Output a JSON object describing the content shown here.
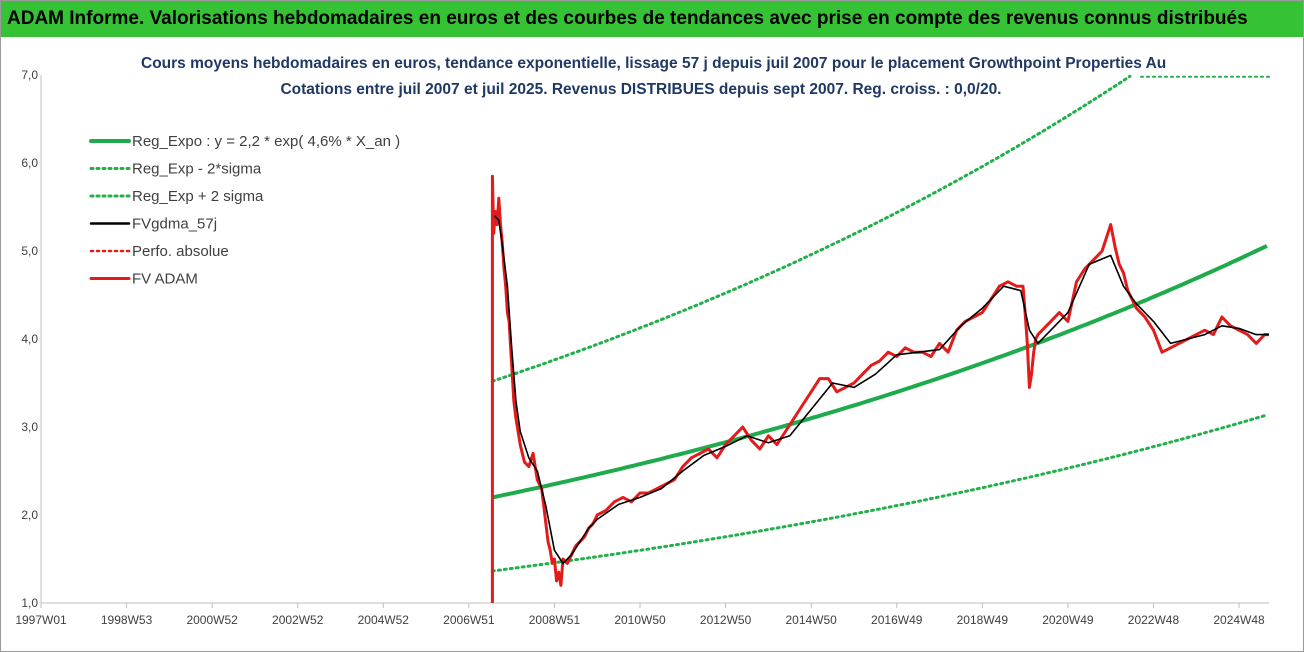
{
  "header": {
    "banner": "ADAM Informe. Valorisations hebdomadaires en euros et des courbes de tendances avec prise en compte des revenus connus distribués"
  },
  "colors": {
    "banner_bg": "#35c335",
    "reg_expo": "#1faa4b",
    "sigma": "#22b04b",
    "fvgdma": "#000000",
    "fvadam": "#e31b1b",
    "perfo": "#e31b1b",
    "title_text": "#1f3864"
  },
  "chart_data": {
    "type": "line",
    "title": "Cours moyens hebdomadaires en euros, tendance exponentielle, lissage 57 j depuis juil 2007 pour le placement Growthpoint Properties Au",
    "subtitle": "Cotations entre juil 2007 et juil 2025.  Revenus DISTRIBUES depuis sept 2007.  Reg. croiss. : 0,0/20.",
    "xlabel": "",
    "ylabel": "",
    "ylim": [
      1.0,
      7.0
    ],
    "xlim": [
      1997.0,
      2025.7
    ],
    "yticks": [
      "1,0",
      "2,0",
      "3,0",
      "4,0",
      "5,0",
      "6,0",
      "7,0"
    ],
    "xticks": [
      {
        "label": "1997W01",
        "x": 1997.0
      },
      {
        "label": "1998W53",
        "x": 1999.0
      },
      {
        "label": "2000W52",
        "x": 2001.0
      },
      {
        "label": "2002W52",
        "x": 2003.0
      },
      {
        "label": "2004W52",
        "x": 2005.0
      },
      {
        "label": "2006W51",
        "x": 2007.0
      },
      {
        "label": "2008W51",
        "x": 2009.0
      },
      {
        "label": "2010W50",
        "x": 2011.0
      },
      {
        "label": "2012W50",
        "x": 2013.0
      },
      {
        "label": "2014W50",
        "x": 2015.0
      },
      {
        "label": "2016W49",
        "x": 2017.0
      },
      {
        "label": "2018W49",
        "x": 2019.0
      },
      {
        "label": "2020W49",
        "x": 2021.0
      },
      {
        "label": "2022W48",
        "x": 2023.0
      },
      {
        "label": "2024W48",
        "x": 2025.0
      }
    ],
    "grid": false,
    "legend_position": "top-left",
    "regression": {
      "a": 2.2,
      "rate": 0.046,
      "x0": 2007.55,
      "x_end": 2025.7,
      "sigma_upper_factor": 1.6,
      "sigma_lower_factor": 0.62
    },
    "legend": [
      {
        "key": "reg_expo",
        "label": "Reg_Expo : y = 2,2 * exp( 4,6% *  X_an )",
        "style": "solid"
      },
      {
        "key": "sigma_lower",
        "label": "Reg_Exp - 2*sigma",
        "style": "dotted"
      },
      {
        "key": "sigma_upper",
        "label": "Reg_Exp + 2 sigma",
        "style": "dotted"
      },
      {
        "key": "fvgdma",
        "label": "FVgdma_57j",
        "style": "solid"
      },
      {
        "key": "perfo",
        "label": "Perfo. absolue",
        "style": "dotted"
      },
      {
        "key": "fvadam",
        "label": "FV ADAM",
        "style": "solid"
      }
    ],
    "series": [
      {
        "name": "FV ADAM",
        "x": [
          2007.55,
          2007.55,
          2007.58,
          2007.62,
          2007.66,
          2007.7,
          2007.74,
          2007.78,
          2007.82,
          2007.86,
          2007.9,
          2007.94,
          2008.0,
          2008.05,
          2008.1,
          2008.15,
          2008.2,
          2008.3,
          2008.4,
          2008.5,
          2008.6,
          2008.7,
          2008.75,
          2008.8,
          2008.85,
          2008.9,
          2008.95,
          2009.0,
          2009.05,
          2009.1,
          2009.15,
          2009.2,
          2009.3,
          2009.4,
          2009.5,
          2009.6,
          2009.7,
          2009.8,
          2009.9,
          2010.0,
          2010.2,
          2010.4,
          2010.6,
          2010.8,
          2011.0,
          2011.2,
          2011.4,
          2011.6,
          2011.8,
          2012.0,
          2012.2,
          2012.4,
          2012.6,
          2012.8,
          2013.0,
          2013.2,
          2013.4,
          2013.6,
          2013.8,
          2014.0,
          2014.2,
          2014.4,
          2014.6,
          2014.8,
          2015.0,
          2015.2,
          2015.4,
          2015.6,
          2015.8,
          2016.0,
          2016.2,
          2016.4,
          2016.6,
          2016.8,
          2017.0,
          2017.2,
          2017.4,
          2017.6,
          2017.8,
          2018.0,
          2018.2,
          2018.4,
          2018.6,
          2018.8,
          2019.0,
          2019.2,
          2019.4,
          2019.6,
          2019.8,
          2019.95,
          2020.0,
          2020.05,
          2020.1,
          2020.15,
          2020.2,
          2020.25,
          2020.3,
          2020.4,
          2020.6,
          2020.8,
          2021.0,
          2021.2,
          2021.4,
          2021.6,
          2021.8,
          2022.0,
          2022.1,
          2022.2,
          2022.3,
          2022.4,
          2022.5,
          2022.6,
          2022.8,
          2023.0,
          2023.2,
          2023.4,
          2023.6,
          2023.8,
          2024.0,
          2024.2,
          2024.4,
          2024.6,
          2024.8,
          2025.0,
          2025.2,
          2025.4,
          2025.6,
          2025.7
        ],
        "y": [
          1.0,
          5.85,
          5.2,
          5.45,
          5.3,
          5.6,
          5.3,
          5.1,
          4.8,
          4.6,
          4.3,
          4.2,
          3.7,
          3.3,
          3.1,
          2.95,
          2.8,
          2.6,
          2.55,
          2.7,
          2.4,
          2.3,
          2.1,
          1.9,
          1.7,
          1.6,
          1.45,
          1.5,
          1.25,
          1.35,
          1.2,
          1.5,
          1.45,
          1.55,
          1.65,
          1.7,
          1.75,
          1.85,
          1.9,
          2.0,
          2.05,
          2.15,
          2.2,
          2.15,
          2.25,
          2.25,
          2.3,
          2.35,
          2.4,
          2.55,
          2.65,
          2.7,
          2.75,
          2.65,
          2.8,
          2.9,
          3.0,
          2.85,
          2.75,
          2.9,
          2.8,
          2.95,
          3.1,
          3.25,
          3.4,
          3.55,
          3.55,
          3.4,
          3.45,
          3.5,
          3.6,
          3.7,
          3.75,
          3.85,
          3.8,
          3.9,
          3.85,
          3.85,
          3.8,
          3.95,
          3.85,
          4.1,
          4.2,
          4.25,
          4.3,
          4.45,
          4.6,
          4.65,
          4.6,
          4.6,
          4.3,
          3.95,
          3.45,
          3.6,
          3.85,
          4.0,
          4.05,
          4.1,
          4.2,
          4.3,
          4.2,
          4.65,
          4.8,
          4.9,
          5.0,
          5.3,
          5.05,
          4.85,
          4.75,
          4.55,
          4.45,
          4.35,
          4.25,
          4.1,
          3.85,
          3.9,
          3.95,
          4.0,
          4.05,
          4.1,
          4.05,
          4.25,
          4.15,
          4.1,
          4.05,
          3.95,
          4.05,
          4.05
        ]
      },
      {
        "name": "FVgdma_57j",
        "x": [
          2007.6,
          2007.7,
          2007.8,
          2007.9,
          2008.0,
          2008.1,
          2008.2,
          2008.4,
          2008.6,
          2008.8,
          2009.0,
          2009.2,
          2009.4,
          2009.6,
          2009.8,
          2010.0,
          2010.5,
          2011.0,
          2011.5,
          2012.0,
          2012.5,
          2013.0,
          2013.5,
          2014.0,
          2014.5,
          2015.0,
          2015.5,
          2016.0,
          2016.5,
          2017.0,
          2017.5,
          2018.0,
          2018.5,
          2019.0,
          2019.5,
          2019.9,
          2020.1,
          2020.3,
          2020.6,
          2021.0,
          2021.5,
          2022.0,
          2022.3,
          2022.6,
          2023.0,
          2023.4,
          2023.8,
          2024.2,
          2024.6,
          2025.0,
          2025.4,
          2025.7
        ],
        "y": [
          5.4,
          5.35,
          5.0,
          4.6,
          3.9,
          3.3,
          2.95,
          2.65,
          2.5,
          2.1,
          1.6,
          1.45,
          1.55,
          1.7,
          1.85,
          1.95,
          2.12,
          2.2,
          2.3,
          2.5,
          2.68,
          2.78,
          2.9,
          2.82,
          2.9,
          3.2,
          3.5,
          3.45,
          3.6,
          3.82,
          3.85,
          3.88,
          4.15,
          4.35,
          4.6,
          4.55,
          4.1,
          3.95,
          4.1,
          4.3,
          4.85,
          4.95,
          4.6,
          4.4,
          4.2,
          3.95,
          4.0,
          4.05,
          4.15,
          4.12,
          4.05,
          4.05
        ]
      }
    ]
  }
}
